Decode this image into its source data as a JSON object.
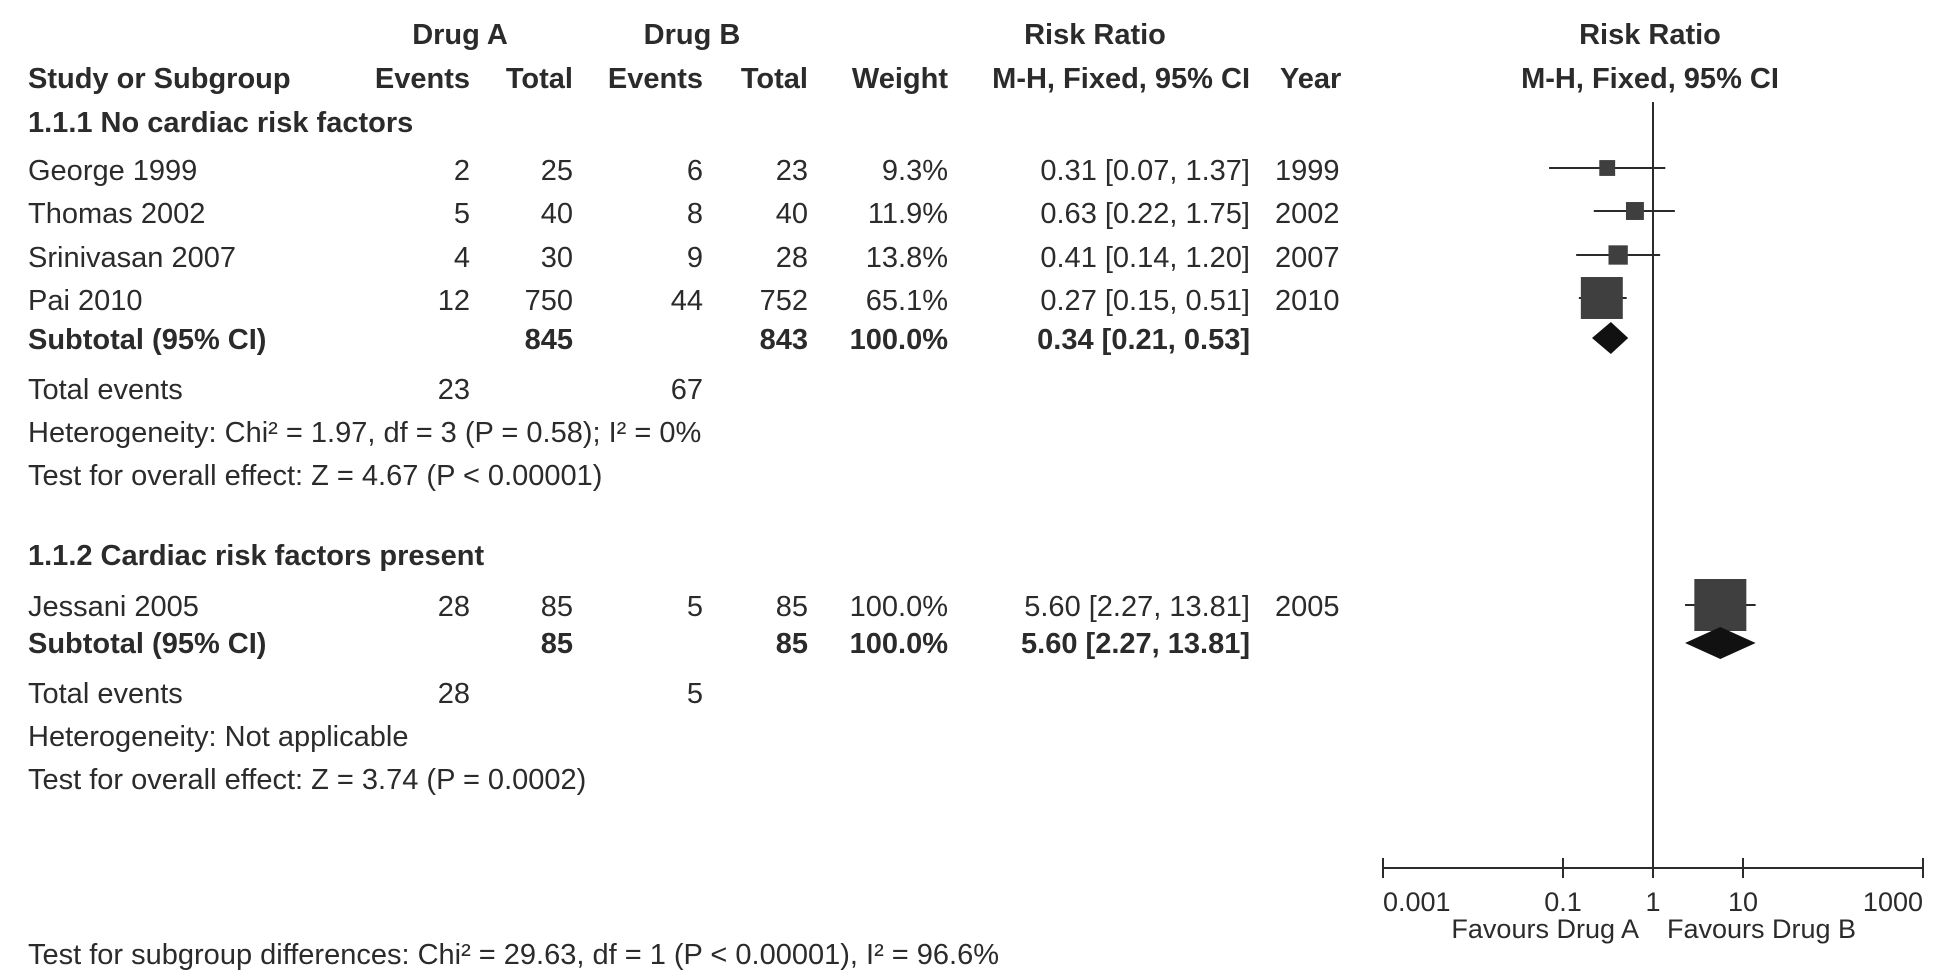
{
  "header": {
    "drug_a": "Drug A",
    "drug_b": "Drug B",
    "risk_ratio": "Risk Ratio",
    "plot_title": "Risk Ratio",
    "study": "Study or Subgroup",
    "events_a": "Events",
    "total_a": "Total",
    "events_b": "Events",
    "total_b": "Total",
    "weight": "Weight",
    "method": "M-H, Fixed, 95% CI",
    "year": "Year",
    "plot_method": "M-H, Fixed, 95% CI"
  },
  "subgroups": [
    {
      "title": "1.1.1 No cardiac risk factors",
      "studies": [
        {
          "name": "George 1999",
          "events_a": "2",
          "total_a": "25",
          "events_b": "6",
          "total_b": "23",
          "weight": "9.3%",
          "ci_text": "0.31 [0.07, 1.37]",
          "year": "1999"
        },
        {
          "name": "Thomas 2002",
          "events_a": "5",
          "total_a": "40",
          "events_b": "8",
          "total_b": "40",
          "weight": "11.9%",
          "ci_text": "0.63 [0.22, 1.75]",
          "year": "2002"
        },
        {
          "name": "Srinivasan 2007",
          "events_a": "4",
          "total_a": "30",
          "events_b": "9",
          "total_b": "28",
          "weight": "13.8%",
          "ci_text": "0.41 [0.14, 1.20]",
          "year": "2007"
        },
        {
          "name": "Pai 2010",
          "events_a": "12",
          "total_a": "750",
          "events_b": "44",
          "total_b": "752",
          "weight": "65.1%",
          "ci_text": "0.27 [0.15, 0.51]",
          "year": "2010"
        }
      ],
      "subtotal": {
        "label": "Subtotal (95% CI)",
        "total_a": "845",
        "total_b": "843",
        "weight": "100.0%",
        "ci_text": "0.34 [0.21, 0.53]"
      },
      "total_events": {
        "label": "Total events",
        "a": "23",
        "b": "67"
      },
      "heterogeneity": "Heterogeneity: Chi² = 1.97, df = 3 (P = 0.58); I² = 0%",
      "overall_effect": "Test for overall effect: Z = 4.67 (P < 0.00001)"
    },
    {
      "title": "1.1.2 Cardiac risk factors present",
      "studies": [
        {
          "name": "Jessani 2005",
          "events_a": "28",
          "total_a": "85",
          "events_b": "5",
          "total_b": "85",
          "weight": "100.0%",
          "ci_text": "5.60 [2.27, 13.81]",
          "year": "2005"
        }
      ],
      "subtotal": {
        "label": "Subtotal (95% CI)",
        "total_a": "85",
        "total_b": "85",
        "weight": "100.0%",
        "ci_text": "5.60 [2.27, 13.81]"
      },
      "total_events": {
        "label": "Total events",
        "a": "28",
        "b": "5"
      },
      "heterogeneity": "Heterogeneity: Not applicable",
      "overall_effect": "Test for overall effect: Z = 3.74 (P = 0.0002)"
    }
  ],
  "subgroup_differences": "Test for subgroup differences: Chi² = 29.63, df = 1 (P < 0.00001), I² = 96.6%",
  "chart_data": {
    "type": "forest",
    "title": "Risk Ratio",
    "subtitle": "M-H, Fixed, 95% CI",
    "scale": "log",
    "xlim": [
      0.001,
      1000
    ],
    "ticks": [
      0.001,
      0.1,
      1,
      10,
      1000
    ],
    "tick_labels": [
      "0.001",
      "0.1",
      "1",
      "10",
      "1000"
    ],
    "null_value": 1,
    "favours_left": "Favours Drug A",
    "favours_right": "Favours Drug B",
    "studies": [
      {
        "name": "George 1999",
        "rr": 0.31,
        "lo": 0.07,
        "hi": 1.37,
        "weight": 9.3
      },
      {
        "name": "Thomas 2002",
        "rr": 0.63,
        "lo": 0.22,
        "hi": 1.75,
        "weight": 11.9
      },
      {
        "name": "Srinivasan 2007",
        "rr": 0.41,
        "lo": 0.14,
        "hi": 1.2,
        "weight": 13.8
      },
      {
        "name": "Pai 2010",
        "rr": 0.27,
        "lo": 0.15,
        "hi": 0.51,
        "weight": 65.1
      },
      {
        "name": "Jessani 2005",
        "rr": 5.6,
        "lo": 2.27,
        "hi": 13.81,
        "weight": 100.0
      }
    ],
    "subtotals": [
      {
        "subgroup": "1.1.1 No cardiac risk factors",
        "rr": 0.34,
        "lo": 0.21,
        "hi": 0.53
      },
      {
        "subgroup": "1.1.2 Cardiac risk factors present",
        "rr": 5.6,
        "lo": 2.27,
        "hi": 13.81
      }
    ],
    "colors": {
      "marker": "#3f3f3f",
      "line": "#2b2b2b"
    }
  }
}
